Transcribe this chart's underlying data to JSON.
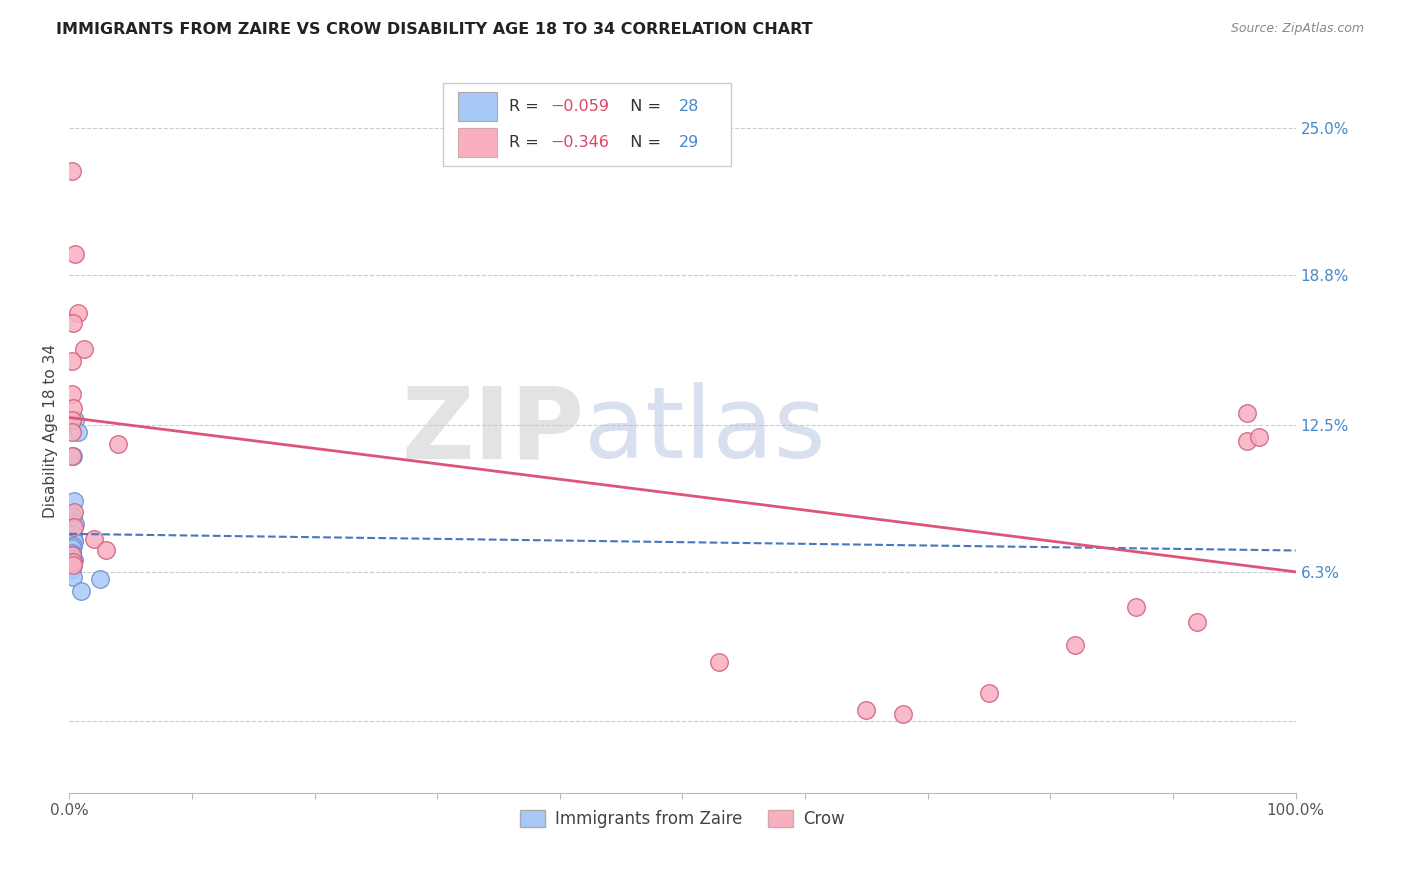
{
  "title": "IMMIGRANTS FROM ZAIRE VS CROW DISABILITY AGE 18 TO 34 CORRELATION CHART",
  "source": "Source: ZipAtlas.com",
  "ylabel": "Disability Age 18 to 34",
  "yticks": [
    0.0,
    0.063,
    0.125,
    0.188,
    0.25
  ],
  "ytick_labels": [
    "",
    "6.3%",
    "12.5%",
    "18.8%",
    "25.0%"
  ],
  "xlim": [
    0.0,
    1.0
  ],
  "ylim": [
    -0.03,
    0.275
  ],
  "blue_color": "#a8c8f8",
  "pink_color": "#f8b0c0",
  "blue_edge_color": "#7090d0",
  "pink_edge_color": "#d06080",
  "blue_line_color": "#4477bb",
  "pink_line_color": "#dd5577",
  "watermark_zip": "ZIP",
  "watermark_atlas": "atlas",
  "blue_points_x": [
    0.005,
    0.007,
    0.003,
    0.004,
    0.002,
    0.003,
    0.002,
    0.005,
    0.003,
    0.003,
    0.004,
    0.004,
    0.002,
    0.003,
    0.002,
    0.002,
    0.002,
    0.002,
    0.002,
    0.002,
    0.003,
    0.004,
    0.003,
    0.003,
    0.002,
    0.003,
    0.025,
    0.01
  ],
  "blue_points_y": [
    0.127,
    0.122,
    0.112,
    0.093,
    0.087,
    0.086,
    0.084,
    0.083,
    0.081,
    0.079,
    0.076,
    0.076,
    0.074,
    0.074,
    0.073,
    0.071,
    0.07,
    0.07,
    0.069,
    0.069,
    0.068,
    0.068,
    0.067,
    0.066,
    0.064,
    0.061,
    0.06,
    0.055
  ],
  "pink_points_x": [
    0.002,
    0.005,
    0.007,
    0.003,
    0.012,
    0.002,
    0.002,
    0.003,
    0.002,
    0.002,
    0.04,
    0.002,
    0.004,
    0.004,
    0.02,
    0.03,
    0.002,
    0.003,
    0.003,
    0.65,
    0.75,
    0.82,
    0.87,
    0.92,
    0.96,
    0.97,
    0.96,
    0.68,
    0.53
  ],
  "pink_points_y": [
    0.232,
    0.197,
    0.172,
    0.168,
    0.157,
    0.152,
    0.138,
    0.132,
    0.127,
    0.122,
    0.117,
    0.112,
    0.088,
    0.082,
    0.077,
    0.072,
    0.07,
    0.067,
    0.066,
    0.005,
    0.012,
    0.032,
    0.048,
    0.042,
    0.118,
    0.12,
    0.13,
    0.003,
    0.025
  ],
  "blue_trend_x0": 0.0,
  "blue_trend_x1": 1.0,
  "blue_trend_y0": 0.079,
  "blue_trend_y1": 0.072,
  "pink_trend_x0": 0.0,
  "pink_trend_x1": 1.0,
  "pink_trend_y0": 0.128,
  "pink_trend_y1": 0.063
}
